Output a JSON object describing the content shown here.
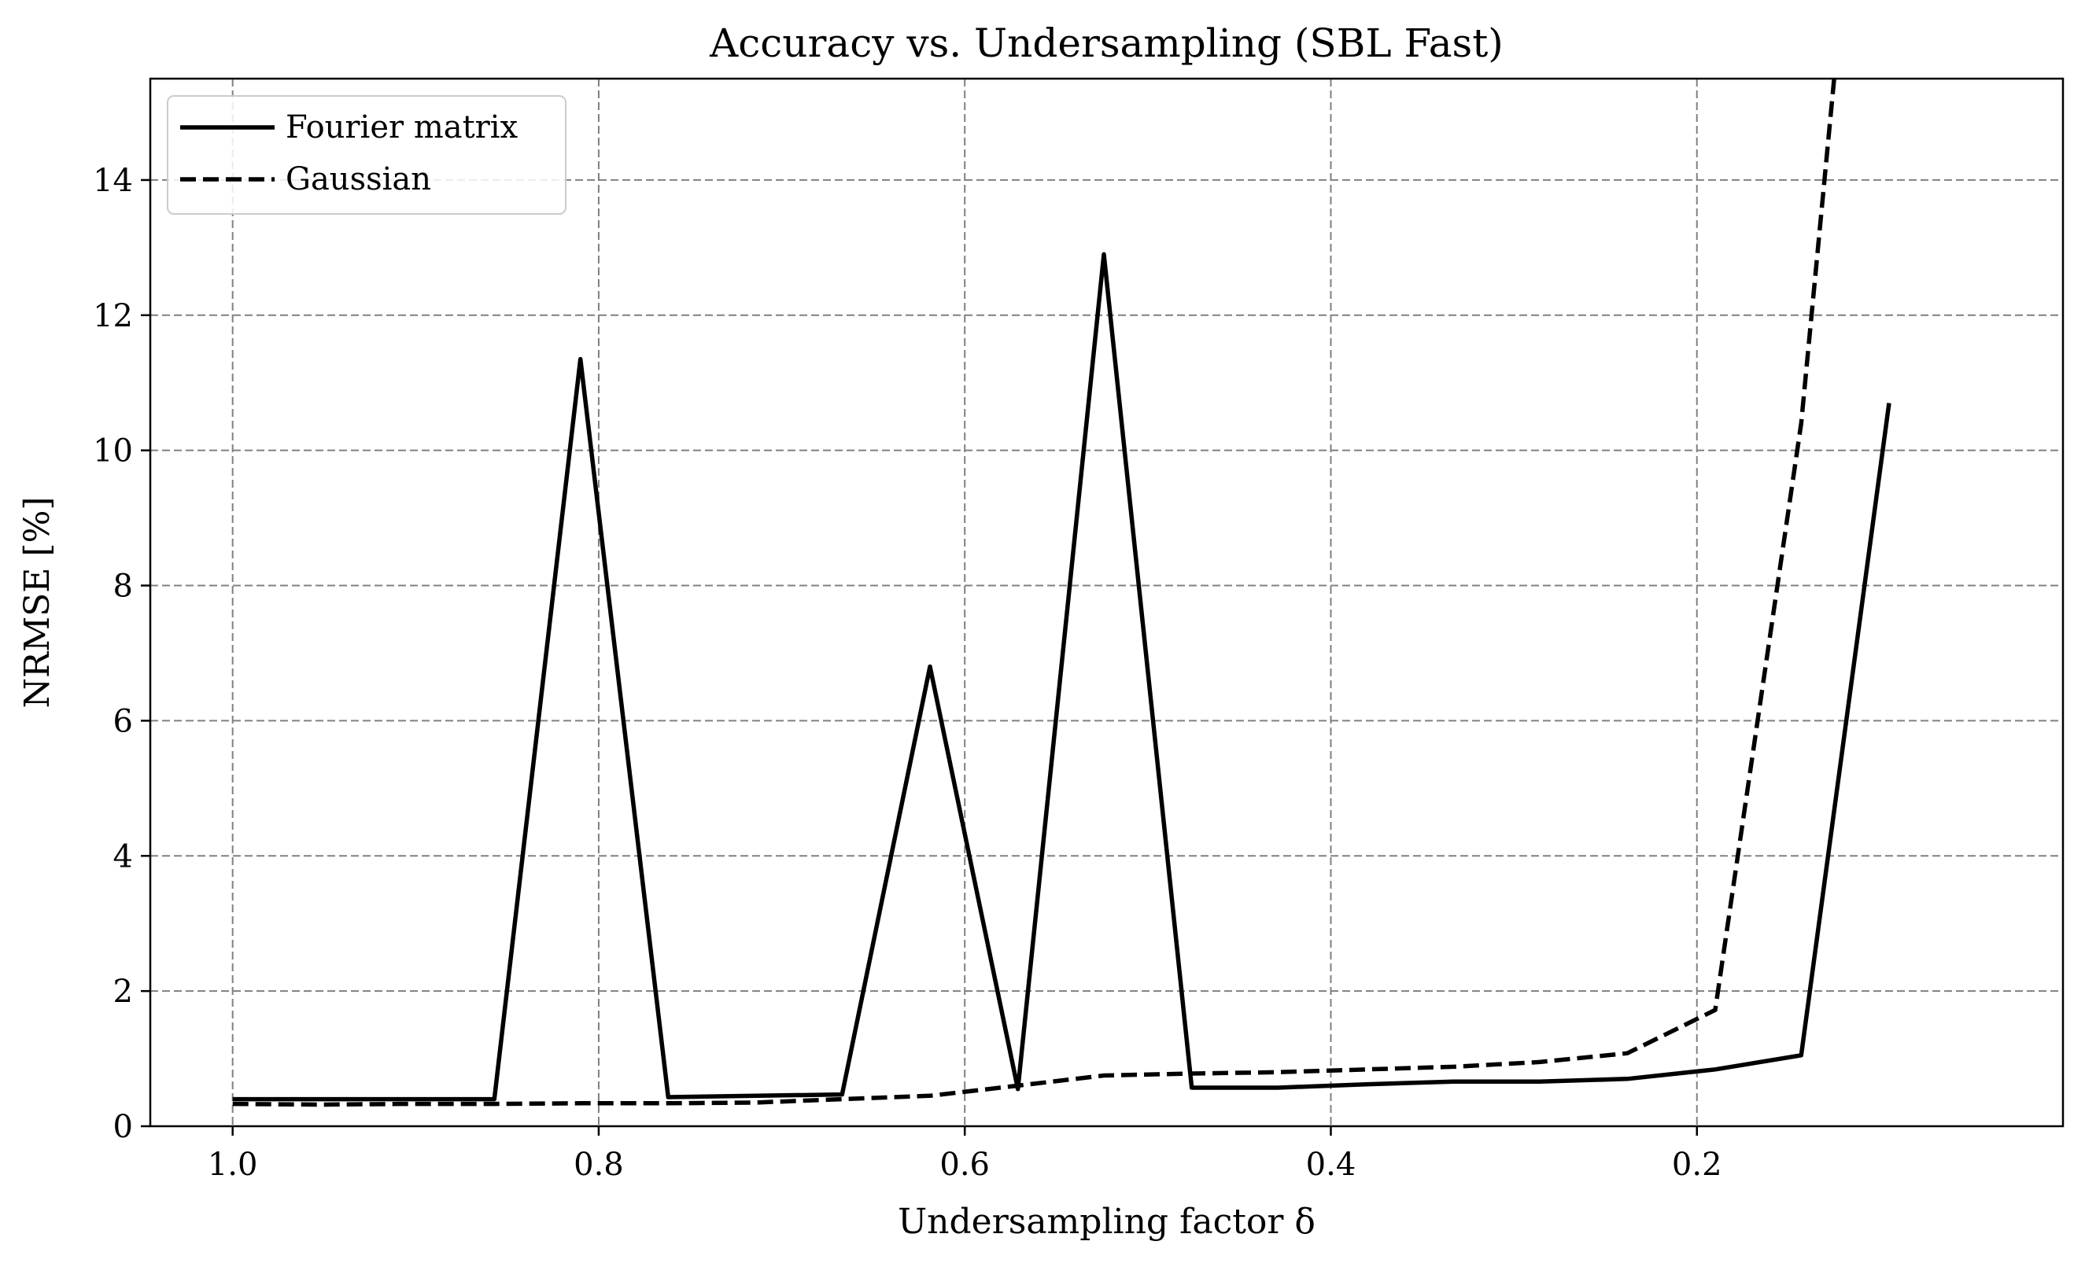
{
  "chart_data": {
    "type": "line",
    "title": "Accuracy vs. Undersampling (SBL Fast)",
    "xlabel": "Undersampling factor δ",
    "ylabel": "NRMSE [%]",
    "xlim": [
      1.045,
      0.0
    ],
    "ylim": [
      0,
      15.5
    ],
    "x_reversed": true,
    "xticks": [
      1.0,
      0.8,
      0.6,
      0.4,
      0.2
    ],
    "xtick_labels": [
      "1.0",
      "0.8",
      "0.6",
      "0.4",
      "0.2"
    ],
    "yticks": [
      0,
      2,
      4,
      6,
      8,
      10,
      12,
      14
    ],
    "ytick_labels": [
      "0",
      "2",
      "4",
      "6",
      "8",
      "10",
      "12",
      "14"
    ],
    "grid": true,
    "legend_position": "top-left",
    "series": [
      {
        "name": "Fourier matrix",
        "style": "solid",
        "color": "#000000",
        "x": [
          1.0,
          0.952,
          0.905,
          0.857,
          0.81,
          0.762,
          0.714,
          0.667,
          0.619,
          0.571,
          0.524,
          0.476,
          0.429,
          0.381,
          0.333,
          0.286,
          0.238,
          0.19,
          0.143,
          0.095
        ],
        "y": [
          0.4,
          0.4,
          0.4,
          0.4,
          11.35,
          0.43,
          0.45,
          0.47,
          6.8,
          0.55,
          12.9,
          0.57,
          0.57,
          0.62,
          0.66,
          0.66,
          0.7,
          0.84,
          1.05,
          10.7
        ]
      },
      {
        "name": "Gaussian",
        "style": "dashed",
        "color": "#000000",
        "x": [
          1.0,
          0.952,
          0.905,
          0.857,
          0.81,
          0.762,
          0.714,
          0.667,
          0.619,
          0.571,
          0.524,
          0.476,
          0.429,
          0.381,
          0.333,
          0.286,
          0.238,
          0.19,
          0.143,
          0.095
        ],
        "y": [
          0.33,
          0.32,
          0.33,
          0.33,
          0.34,
          0.34,
          0.35,
          0.4,
          0.45,
          0.6,
          0.75,
          0.78,
          0.8,
          0.84,
          0.88,
          0.95,
          1.08,
          1.72,
          10.4,
          24.0
        ]
      }
    ]
  }
}
